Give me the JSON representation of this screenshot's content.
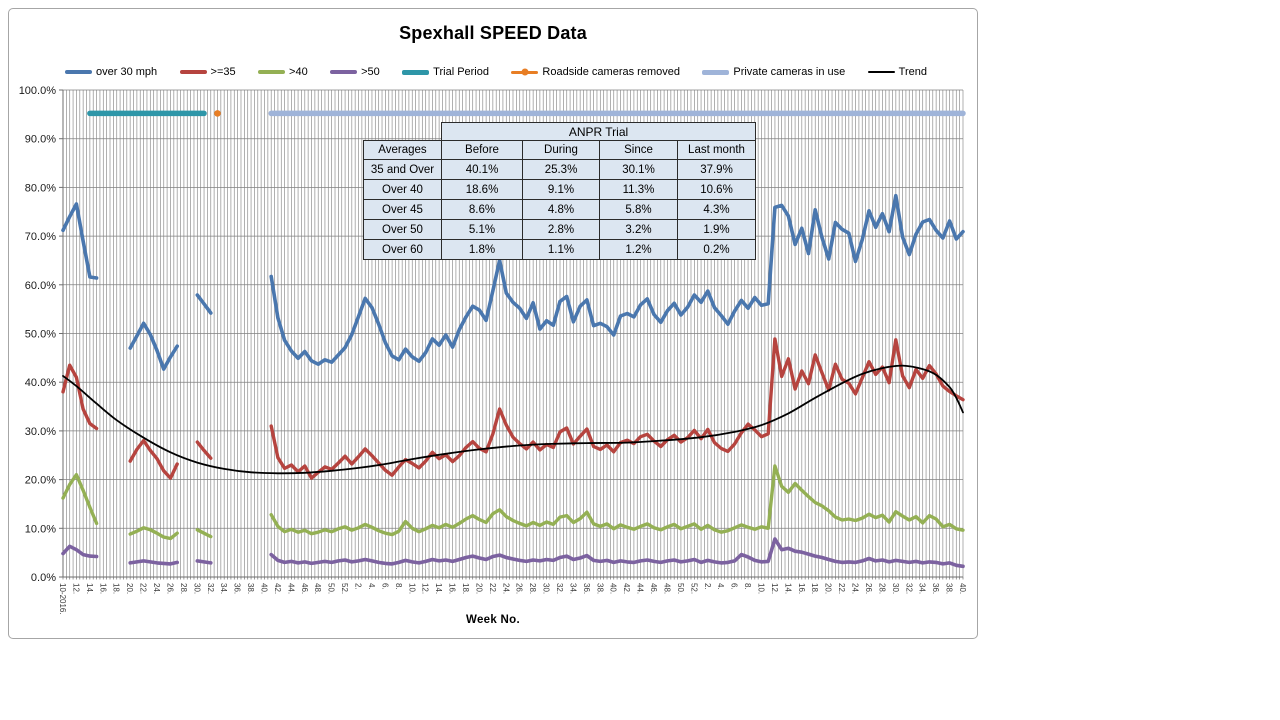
{
  "chart_data": {
    "type": "line",
    "title": "Spexhall SPEED Data",
    "xlabel": "Week No.",
    "ylim": [
      0,
      100
    ],
    "grid": "on",
    "legend_position": "top",
    "n_categories": 135,
    "x_categories_note": "weekly data: weeks 10-52 of 2016, 1-52 of 2017, 1-40 of 2018; a tick label every 2 weeks",
    "y_tick_labels": [
      "0.0%",
      "10.0%",
      "20.0%",
      "30.0%",
      "40.0%",
      "50.0%",
      "60.0%",
      "70.0%",
      "80.0%",
      "90.0%",
      "100.0%"
    ],
    "x_tick_labels": [
      "10-2016.",
      "12.",
      "14.",
      "16.",
      "18.",
      "20.",
      "22.",
      "24.",
      "26.",
      "28.",
      "30.",
      "32.",
      "34.",
      "36.",
      "38.",
      "40.",
      "42.",
      "44.",
      "46.",
      "48.",
      "50.",
      "52.",
      "2.",
      "4.",
      "6.",
      "8.",
      "10.",
      "12.",
      "14.",
      "16.",
      "18.",
      "20.",
      "22.",
      "24.",
      "26.",
      "28.",
      "30.",
      "32.",
      "34.",
      "36.",
      "38.",
      "40.",
      "42.",
      "44.",
      "46.",
      "48.",
      "50.",
      "52.",
      "2.",
      "4.",
      "6.",
      "8.",
      "10.",
      "12.",
      "14.",
      "16.",
      "18.",
      "20.",
      "22.",
      "24.",
      "26.",
      "28.",
      "30.",
      "32.",
      "34.",
      "36.",
      "38.",
      "40."
    ],
    "x_tick_step": 2,
    "series": [
      {
        "name": "over 30 mph",
        "color": "#4a77ae",
        "width": 3.6,
        "values": [
          71.2,
          74.0,
          76.6,
          69.0,
          61.6,
          61.4,
          null,
          null,
          null,
          null,
          47.0,
          49.5,
          52.1,
          49.8,
          46.5,
          42.7,
          45.2,
          47.4,
          null,
          null,
          57.9,
          56.1,
          54.2,
          null,
          null,
          null,
          null,
          null,
          null,
          null,
          null,
          61.7,
          53.2,
          48.6,
          46.4,
          44.9,
          46.3,
          44.4,
          43.7,
          44.6,
          44.1,
          45.6,
          47.1,
          49.8,
          53.5,
          57.2,
          55.3,
          51.9,
          48.1,
          45.4,
          44.6,
          46.8,
          45.2,
          44.3,
          46.1,
          48.9,
          47.6,
          49.7,
          47.2,
          50.8,
          53.4,
          55.6,
          54.8,
          52.7,
          58.8,
          65.0,
          58.3,
          56.4,
          55.2,
          53.1,
          56.3,
          50.9,
          52.6,
          51.7,
          56.6,
          57.6,
          52.4,
          55.6,
          56.9,
          51.6,
          52.1,
          51.4,
          49.7,
          53.6,
          54.1,
          53.4,
          55.9,
          57.1,
          53.9,
          52.3,
          54.7,
          56.2,
          53.8,
          55.4,
          57.9,
          56.4,
          58.7,
          55.3,
          53.7,
          51.9,
          54.6,
          56.8,
          55.2,
          57.4,
          55.8,
          56.1,
          75.9,
          76.3,
          74.1,
          68.3,
          71.6,
          66.4,
          75.4,
          69.7,
          65.3,
          72.8,
          71.4,
          70.6,
          64.8,
          69.3,
          75.2,
          71.8,
          74.6,
          70.9,
          78.3,
          69.8,
          66.2,
          70.4,
          72.9,
          73.4,
          71.2,
          69.6,
          73.1,
          69.4,
          70.9
        ]
      },
      {
        "name": ">=35",
        "color": "#b6443f",
        "width": 3.4,
        "values": [
          38.0,
          43.5,
          41.0,
          34.5,
          31.5,
          30.5,
          null,
          null,
          null,
          null,
          23.8,
          26.2,
          28.0,
          26.0,
          24.3,
          21.8,
          20.3,
          23.2,
          null,
          null,
          27.7,
          26.0,
          24.4,
          null,
          null,
          null,
          null,
          null,
          null,
          null,
          null,
          31.0,
          24.5,
          22.3,
          23.0,
          21.6,
          22.8,
          20.3,
          21.5,
          22.6,
          22.1,
          23.4,
          24.8,
          23.2,
          24.7,
          26.3,
          24.9,
          23.4,
          21.9,
          20.9,
          22.6,
          24.1,
          23.3,
          22.4,
          23.8,
          25.6,
          24.3,
          25.1,
          23.7,
          24.9,
          26.6,
          27.8,
          26.4,
          25.7,
          29.4,
          34.5,
          31.2,
          28.7,
          27.4,
          26.3,
          27.7,
          26.1,
          27.2,
          26.6,
          29.8,
          30.6,
          27.3,
          28.9,
          30.4,
          26.8,
          26.2,
          27.1,
          25.7,
          27.6,
          28.1,
          27.4,
          28.8,
          29.3,
          27.9,
          26.8,
          28.2,
          29.1,
          27.7,
          28.6,
          30.1,
          28.4,
          30.3,
          27.6,
          26.4,
          25.8,
          27.3,
          29.6,
          31.4,
          30.2,
          28.8,
          29.4,
          48.9,
          41.2,
          44.8,
          38.6,
          42.3,
          39.7,
          45.6,
          41.9,
          38.4,
          43.7,
          40.6,
          39.8,
          37.6,
          40.9,
          44.2,
          41.6,
          43.1,
          39.9,
          48.7,
          41.3,
          38.9,
          42.6,
          40.8,
          43.4,
          41.7,
          39.2,
          38.1,
          37.2,
          36.4
        ]
      },
      {
        "name": ">40",
        "color": "#94b054",
        "width": 3.4,
        "values": [
          16.2,
          19.0,
          21.0,
          17.8,
          14.3,
          11.0,
          null,
          null,
          null,
          null,
          8.8,
          9.4,
          10.1,
          9.7,
          9.0,
          8.2,
          7.9,
          9.0,
          null,
          null,
          9.7,
          9.0,
          8.3,
          null,
          null,
          null,
          null,
          null,
          null,
          null,
          null,
          12.8,
          10.4,
          9.3,
          9.8,
          9.2,
          9.6,
          8.9,
          9.2,
          9.7,
          9.3,
          9.9,
          10.3,
          9.6,
          10.1,
          10.8,
          10.2,
          9.5,
          9.0,
          8.7,
          9.4,
          11.4,
          10.0,
          9.3,
          9.9,
          10.6,
          10.1,
          10.8,
          10.2,
          11.0,
          11.9,
          12.6,
          11.8,
          11.2,
          13.0,
          13.8,
          12.4,
          11.6,
          11.0,
          10.5,
          11.2,
          10.6,
          11.3,
          10.8,
          12.3,
          12.6,
          11.2,
          12.0,
          13.3,
          10.9,
          10.4,
          10.9,
          9.9,
          10.7,
          10.2,
          9.8,
          10.4,
          10.9,
          10.1,
          9.7,
          10.3,
          10.8,
          9.9,
          10.4,
          10.9,
          9.8,
          10.6,
          9.7,
          9.2,
          9.5,
          10.1,
          10.7,
          10.2,
          9.8,
          10.3,
          10.0,
          22.8,
          18.6,
          17.4,
          19.2,
          17.8,
          16.5,
          15.3,
          14.6,
          13.6,
          12.3,
          11.7,
          11.9,
          11.6,
          12.1,
          12.9,
          12.2,
          12.7,
          11.3,
          13.4,
          12.5,
          11.7,
          12.4,
          11.1,
          12.6,
          11.9,
          10.3,
          10.8,
          9.9,
          9.6
        ]
      },
      {
        "name": ">50",
        "color": "#7c62a0",
        "width": 3.6,
        "values": [
          4.8,
          6.3,
          5.6,
          4.6,
          4.3,
          4.2,
          null,
          null,
          null,
          null,
          2.9,
          3.1,
          3.3,
          3.1,
          2.9,
          2.8,
          2.7,
          3.0,
          null,
          null,
          3.3,
          3.1,
          2.9,
          null,
          null,
          null,
          null,
          null,
          null,
          null,
          null,
          4.6,
          3.4,
          3.0,
          3.2,
          2.9,
          3.1,
          2.8,
          3.0,
          3.2,
          3.0,
          3.3,
          3.5,
          3.1,
          3.3,
          3.6,
          3.3,
          3.0,
          2.8,
          2.7,
          3.0,
          3.4,
          3.1,
          2.9,
          3.2,
          3.6,
          3.3,
          3.5,
          3.2,
          3.6,
          4.0,
          4.3,
          3.9,
          3.6,
          4.2,
          4.5,
          4.0,
          3.7,
          3.4,
          3.2,
          3.5,
          3.3,
          3.6,
          3.4,
          4.0,
          4.3,
          3.6,
          3.9,
          4.4,
          3.4,
          3.2,
          3.4,
          3.0,
          3.3,
          3.1,
          3.0,
          3.3,
          3.5,
          3.2,
          3.0,
          3.3,
          3.5,
          3.1,
          3.3,
          3.6,
          3.0,
          3.4,
          3.1,
          2.9,
          3.0,
          3.3,
          4.6,
          4.1,
          3.4,
          3.1,
          3.2,
          7.8,
          5.6,
          5.9,
          5.3,
          5.1,
          4.7,
          4.3,
          4.0,
          3.6,
          3.2,
          3.0,
          3.1,
          3.0,
          3.3,
          3.8,
          3.3,
          3.5,
          3.1,
          3.4,
          3.2,
          3.0,
          3.2,
          2.9,
          3.1,
          3.0,
          2.7,
          2.9,
          2.4,
          2.2
        ]
      }
    ],
    "events": [
      {
        "name": "Trial Period",
        "type": "span",
        "color": "#2e96a8",
        "from_index": 4,
        "to_index": 21,
        "level": 95.2
      },
      {
        "name": "Roadside cameras removed",
        "type": "point",
        "color": "#e87e24",
        "index": 23,
        "level": 95.2
      },
      {
        "name": "Private cameras in use",
        "type": "span",
        "color": "#9fb4d9",
        "from_index": 31,
        "to_index": 134,
        "level": 95.2
      }
    ],
    "trend": {
      "name": "Trend",
      "color": "#000000",
      "width": 1.8,
      "anchors": [
        [
          0,
          41.3
        ],
        [
          2,
          39.2
        ],
        [
          5,
          35.6
        ],
        [
          8,
          32.2
        ],
        [
          12,
          28.6
        ],
        [
          16,
          25.6
        ],
        [
          20,
          23.5
        ],
        [
          24,
          22.2
        ],
        [
          28,
          21.5
        ],
        [
          32,
          21.3
        ],
        [
          36,
          21.4
        ],
        [
          40,
          21.8
        ],
        [
          44,
          22.4
        ],
        [
          48,
          23.2
        ],
        [
          52,
          24.2
        ],
        [
          57,
          25.3
        ],
        [
          62,
          26.2
        ],
        [
          67,
          26.9
        ],
        [
          72,
          27.3
        ],
        [
          78,
          27.5
        ],
        [
          84,
          27.6
        ],
        [
          90,
          28.1
        ],
        [
          95,
          28.7
        ],
        [
          100,
          29.8
        ],
        [
          104,
          31.2
        ],
        [
          108,
          33.6
        ],
        [
          112,
          36.8
        ],
        [
          116,
          39.8
        ],
        [
          119,
          41.7
        ],
        [
          122,
          42.9
        ],
        [
          125,
          43.4
        ],
        [
          128,
          42.7
        ],
        [
          130,
          41.5
        ],
        [
          132,
          39.0
        ],
        [
          133,
          36.8
        ],
        [
          134,
          33.8
        ]
      ]
    }
  },
  "legend": {
    "items": [
      {
        "label": "over 30 mph",
        "color": "#4a77ae",
        "thickness": 4,
        "marker": false
      },
      {
        "label": ">=35",
        "color": "#b6443f",
        "thickness": 4,
        "marker": false
      },
      {
        "label": ">40",
        "color": "#94b054",
        "thickness": 4,
        "marker": false
      },
      {
        "label": ">50",
        "color": "#7c62a0",
        "thickness": 4,
        "marker": false
      },
      {
        "label": "Trial Period",
        "color": "#2e96a8",
        "thickness": 5,
        "marker": false
      },
      {
        "label": "Roadside cameras removed",
        "color": "#e87e24",
        "thickness": 3,
        "marker": true
      },
      {
        "label": "Private cameras in use",
        "color": "#9fb4d9",
        "thickness": 5,
        "marker": false
      },
      {
        "label": "Trend",
        "color": "#000000",
        "thickness": 1.5,
        "marker": false
      }
    ]
  },
  "anpr_table": {
    "title": "ANPR Trial",
    "col_headers": [
      "Averages",
      "Before",
      "During",
      "Since",
      "Last month"
    ],
    "rows": [
      {
        "label": "35 and Over",
        "values": [
          "40.1%",
          "25.3%",
          "30.1%",
          "37.9%"
        ]
      },
      {
        "label": "Over 40",
        "values": [
          "18.6%",
          "9.1%",
          "11.3%",
          "10.6%"
        ]
      },
      {
        "label": "Over 45",
        "values": [
          "8.6%",
          "4.8%",
          "5.8%",
          "4.3%"
        ]
      },
      {
        "label": "Over 50",
        "values": [
          "5.1%",
          "2.8%",
          "3.2%",
          "1.9%"
        ]
      },
      {
        "label": "Over 60",
        "values": [
          "1.8%",
          "1.1%",
          "1.2%",
          "0.2%"
        ]
      }
    ]
  }
}
